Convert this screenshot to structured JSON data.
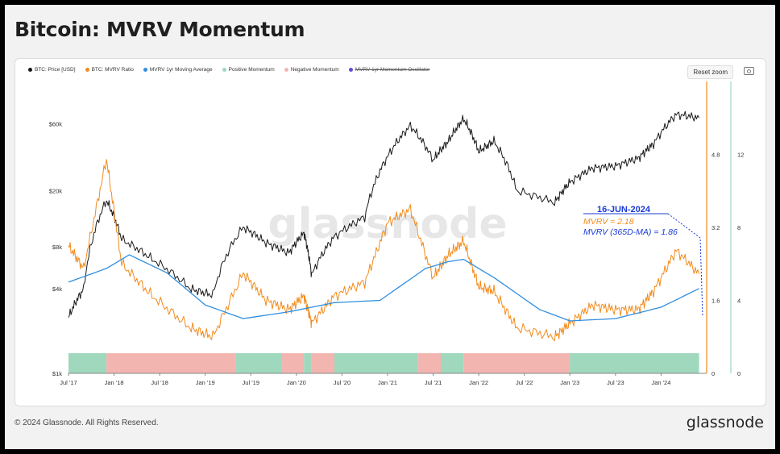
{
  "title": "Bitcoin: MVRV Momentum",
  "footer": {
    "copyright": "© 2024 Glassnode. All Rights Reserved.",
    "brand": "glassnode"
  },
  "toolbar": {
    "reset_zoom": "Reset zoom"
  },
  "legend": [
    {
      "label": "BTC: Price [USD]",
      "color": "#1a1a1a",
      "enabled": true
    },
    {
      "label": "BTC: MVRV Ratio",
      "color": "#f28b1c",
      "enabled": true
    },
    {
      "label": "MVRV 1yr Moving Average",
      "color": "#2f8ee0",
      "enabled": true
    },
    {
      "label": "Positive Momentum",
      "color": "#9fd8bd",
      "enabled": true
    },
    {
      "label": "Negative Momentum",
      "color": "#f3b5b0",
      "enabled": true
    },
    {
      "label": "MVRV 1yr Momentum Oscillator",
      "color": "#5b4fd6",
      "enabled": false
    }
  ],
  "watermark": "glassnode",
  "annotation": {
    "date": "16-JUN-2024",
    "mvrv": "MVRV = 2.18",
    "ma": "MVRV (365D-MA) = 1.86"
  },
  "chart_data": {
    "type": "line",
    "x_ticks": [
      "Jul '17",
      "Jan '18",
      "Jul '18",
      "Jan '19",
      "Jul '19",
      "Jan '20",
      "Jul '20",
      "Jan '21",
      "Jul '21",
      "Jan '22",
      "Jul '22",
      "Jan '23",
      "Jul '23",
      "Jan '24"
    ],
    "y_left": {
      "scale": "log",
      "ticks": [
        "$60k",
        "$20k",
        "$8k",
        "$4k",
        "$1k"
      ],
      "tick_values": [
        60000,
        20000,
        8000,
        4000,
        1000
      ],
      "range": [
        1000,
        120000
      ]
    },
    "y_mid": {
      "ticks": [
        "4.8",
        "3.2",
        "1.6",
        "0"
      ],
      "tick_values": [
        4.8,
        3.2,
        1.6,
        0
      ],
      "range": [
        0,
        6.4
      ]
    },
    "y_right": {
      "ticks": [
        "12",
        "8",
        "4",
        "0"
      ],
      "tick_values": [
        12,
        8,
        4,
        0
      ],
      "range": [
        0,
        16
      ]
    },
    "series": [
      {
        "name": "BTC: Price [USD]",
        "axis": "left",
        "x": [
          "2017-07",
          "2017-09",
          "2017-12",
          "2018-02",
          "2018-06",
          "2018-11",
          "2019-02",
          "2019-06",
          "2019-09",
          "2019-12",
          "2020-02",
          "2020-03",
          "2020-06",
          "2020-10",
          "2021-01",
          "2021-04",
          "2021-07",
          "2021-09",
          "2021-11",
          "2022-01",
          "2022-03",
          "2022-06",
          "2022-11",
          "2023-01",
          "2023-04",
          "2023-07",
          "2023-10",
          "2023-12",
          "2024-03",
          "2024-06"
        ],
        "values": [
          2500,
          4000,
          17000,
          9000,
          6500,
          4000,
          3600,
          11000,
          8500,
          7200,
          10000,
          5000,
          9400,
          13000,
          35000,
          58000,
          33000,
          45000,
          65000,
          38000,
          45000,
          20000,
          16500,
          23000,
          29000,
          30000,
          34000,
          43000,
          70000,
          66000
        ]
      },
      {
        "name": "BTC: MVRV Ratio",
        "axis": "mid",
        "x": [
          "2017-07",
          "2017-09",
          "2017-12",
          "2018-02",
          "2018-06",
          "2018-11",
          "2019-02",
          "2019-06",
          "2019-09",
          "2019-12",
          "2020-02",
          "2020-03",
          "2020-06",
          "2020-10",
          "2021-01",
          "2021-04",
          "2021-07",
          "2021-09",
          "2021-11",
          "2022-01",
          "2022-03",
          "2022-06",
          "2022-11",
          "2023-01",
          "2023-04",
          "2023-07",
          "2023-10",
          "2023-12",
          "2024-03",
          "2024-06"
        ],
        "values": [
          2.8,
          2.3,
          4.7,
          2.4,
          1.7,
          1.0,
          0.8,
          2.2,
          1.6,
          1.4,
          1.7,
          1.1,
          1.7,
          2.0,
          3.3,
          3.6,
          2.1,
          2.6,
          2.9,
          1.9,
          1.8,
          1.0,
          0.8,
          1.1,
          1.5,
          1.4,
          1.4,
          1.8,
          2.7,
          2.18
        ]
      },
      {
        "name": "MVRV 1yr Moving Average",
        "axis": "mid",
        "x": [
          "2017-07",
          "2017-12",
          "2018-03",
          "2018-08",
          "2019-01",
          "2019-06",
          "2019-12",
          "2020-06",
          "2020-12",
          "2021-06",
          "2021-09",
          "2021-11",
          "2022-03",
          "2022-09",
          "2023-01",
          "2023-07",
          "2024-01",
          "2024-06"
        ],
        "values": [
          2.0,
          2.3,
          2.6,
          2.2,
          1.5,
          1.2,
          1.35,
          1.55,
          1.6,
          2.3,
          2.45,
          2.5,
          2.1,
          1.4,
          1.15,
          1.2,
          1.45,
          1.86
        ]
      }
    ],
    "momentum_bars": [
      {
        "from": "2017-07",
        "to": "2017-12",
        "sign": "positive"
      },
      {
        "from": "2017-12",
        "to": "2019-05",
        "sign": "negative"
      },
      {
        "from": "2019-05",
        "to": "2019-11",
        "sign": "positive"
      },
      {
        "from": "2019-11",
        "to": "2020-02",
        "sign": "negative"
      },
      {
        "from": "2020-02",
        "to": "2020-03",
        "sign": "positive"
      },
      {
        "from": "2020-03",
        "to": "2020-06",
        "sign": "negative"
      },
      {
        "from": "2020-06",
        "to": "2021-05",
        "sign": "positive"
      },
      {
        "from": "2021-05",
        "to": "2021-08",
        "sign": "negative"
      },
      {
        "from": "2021-08",
        "to": "2021-11",
        "sign": "positive"
      },
      {
        "from": "2021-11",
        "to": "2023-01",
        "sign": "negative"
      },
      {
        "from": "2023-01",
        "to": "2024-06",
        "sign": "positive"
      }
    ]
  }
}
